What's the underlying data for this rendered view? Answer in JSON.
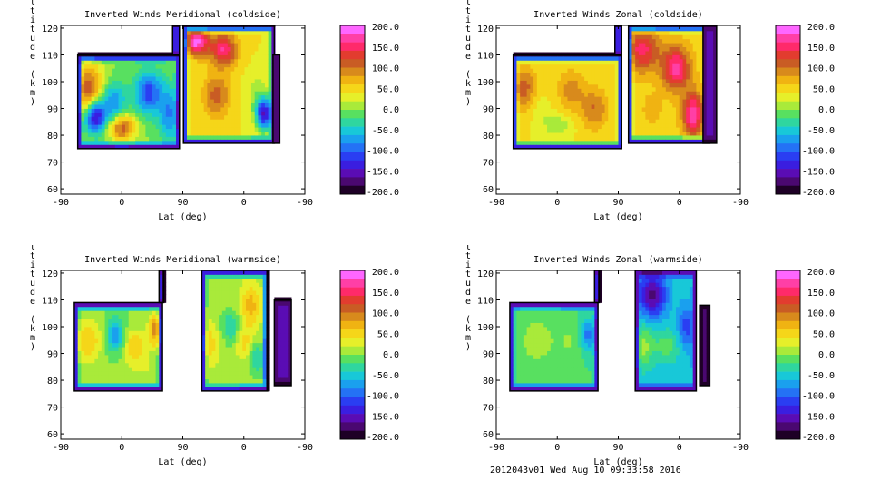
{
  "footer": "2012043v01 Wed Aug 10 09:33:58 2016",
  "colormap": [
    "#fe66ff",
    "#ff3fa6",
    "#ff2a6a",
    "#e23c2f",
    "#c95c24",
    "#d88a1c",
    "#f0b312",
    "#f5d619",
    "#e6ef2a",
    "#a9ea3a",
    "#58e060",
    "#2fd69f",
    "#18c8d8",
    "#1aa0ee",
    "#2472f5",
    "#2a3ef2",
    "#3a1ee0",
    "#5a0cb4",
    "#4a0870",
    "#1e0026"
  ],
  "chart_data": [
    {
      "type": "contour",
      "title": "Inverted Winds Meridional (coldside)",
      "xlabel": "Lat (deg)",
      "ylabel": "Altitude (km)",
      "x_ticks": [
        "-90",
        "0",
        "90",
        "0",
        "-90"
      ],
      "y_ticks": [
        "60",
        "70",
        "80",
        "90",
        "100",
        "110",
        "120"
      ],
      "ylim": [
        58,
        121
      ],
      "colorbar_ticks": [
        "200.0",
        "150.0",
        "100.0",
        "50.0",
        "0.0",
        "-50.0",
        "-100.0",
        "-150.0",
        "-200.0"
      ],
      "colorbar_range": [
        -200,
        200
      ],
      "regions": [
        {
          "x": [
            -65,
            85
          ],
          "alt": [
            75,
            110
          ],
          "base": 0,
          "blobs": [
            [
              -50,
              97,
              25,
              10,
              115
            ],
            [
              0,
              83,
              20,
              5,
              120
            ],
            [
              -40,
              87,
              15,
              6,
              -160
            ],
            [
              -15,
              92,
              20,
              8,
              -90
            ],
            [
              40,
              96,
              20,
              8,
              -110
            ],
            [
              70,
              88,
              15,
              10,
              -80
            ]
          ]
        },
        {
          "x": [
            75,
            85
          ],
          "alt": [
            110,
            121
          ],
          "base": 0,
          "blobs": []
        },
        {
          "x": [
            91,
            225
          ],
          "alt": [
            77,
            121
          ],
          "base": 40,
          "blobs": [
            [
              110,
              115,
              18,
              5,
              150
            ],
            [
              150,
              112,
              20,
              6,
              120
            ],
            [
              125,
              105,
              15,
              5,
              0
            ],
            [
              170,
              102,
              18,
              6,
              0
            ],
            [
              200,
              95,
              15,
              8,
              -30
            ],
            [
              140,
              95,
              20,
              8,
              70
            ],
            [
              210,
              88,
              12,
              6,
              -180
            ]
          ]
        },
        {
          "x": [
            223,
            233
          ],
          "alt": [
            77,
            110
          ],
          "base": -100,
          "blobs": []
        }
      ]
    },
    {
      "type": "contour",
      "title": "Inverted Winds Zonal (coldside)",
      "xlabel": "Lat (deg)",
      "ylabel": "Altitude (km)",
      "x_ticks": [
        "-90",
        "0",
        "90",
        "0",
        "-90"
      ],
      "y_ticks": [
        "60",
        "70",
        "80",
        "90",
        "100",
        "110",
        "120"
      ],
      "ylim": [
        58,
        121
      ],
      "colorbar_ticks": [
        "200.0",
        "150.0",
        "100.0",
        "50.0",
        "0.0",
        "-50.0",
        "-100.0",
        "-150.0",
        "-200.0"
      ],
      "colorbar_range": [
        -200,
        200
      ],
      "regions": [
        {
          "x": [
            -65,
            95
          ],
          "alt": [
            75,
            110
          ],
          "base": 40,
          "blobs": [
            [
              -50,
              98,
              20,
              8,
              70
            ],
            [
              20,
              97,
              20,
              8,
              50
            ],
            [
              55,
              90,
              20,
              8,
              60
            ],
            [
              0,
              84,
              20,
              4,
              -40
            ],
            [
              -25,
              90,
              12,
              5,
              -20
            ]
          ]
        },
        {
          "x": [
            85,
            95
          ],
          "alt": [
            110,
            121
          ],
          "base": 0,
          "blobs": []
        },
        {
          "x": [
            105,
            225
          ],
          "alt": [
            77,
            121
          ],
          "base": 50,
          "blobs": [
            [
              125,
              112,
              25,
              8,
              100
            ],
            [
              175,
              105,
              20,
              8,
              120
            ],
            [
              200,
              88,
              15,
              8,
              130
            ],
            [
              140,
              90,
              15,
              6,
              20
            ]
          ]
        },
        {
          "x": [
            215,
            235
          ],
          "alt": [
            77,
            121
          ],
          "base": -150,
          "blobs": []
        }
      ]
    },
    {
      "type": "contour",
      "title": "Inverted Winds Meridional (warmside)",
      "xlabel": "Lat (deg)",
      "ylabel": "Altitude (km)",
      "x_ticks": [
        "-90",
        "0",
        "90",
        "0",
        "-90"
      ],
      "y_ticks": [
        "60",
        "70",
        "80",
        "90",
        "100",
        "110",
        "120"
      ],
      "ylim": [
        58,
        121
      ],
      "colorbar_ticks": [
        "200.0",
        "150.0",
        "100.0",
        "50.0",
        "0.0",
        "-50.0",
        "-100.0",
        "-150.0",
        "-200.0"
      ],
      "colorbar_range": [
        -200,
        200
      ],
      "regions": [
        {
          "x": [
            -70,
            60
          ],
          "alt": [
            76,
            109
          ],
          "base": 0,
          "blobs": [
            [
              -50,
              95,
              20,
              8,
              60
            ],
            [
              20,
              93,
              15,
              6,
              60
            ],
            [
              -10,
              97,
              12,
              6,
              -80
            ],
            [
              50,
              99,
              10,
              6,
              100
            ],
            [
              30,
              85,
              30,
              5,
              20
            ]
          ]
        },
        {
          "x": [
            55,
            62
          ],
          "alt": [
            109,
            121
          ],
          "base": 0,
          "blobs": []
        },
        {
          "x": [
            118,
            215
          ],
          "alt": [
            76,
            121
          ],
          "base": 10,
          "blobs": [
            [
              190,
              108,
              15,
              8,
              60
            ],
            [
              160,
              100,
              15,
              6,
              -50
            ],
            [
              180,
              94,
              12,
              6,
              40
            ],
            [
              200,
              88,
              12,
              6,
              -50
            ],
            [
              130,
              94,
              15,
              8,
              40
            ]
          ]
        },
        {
          "x": [
            225,
            250
          ],
          "alt": [
            78,
            110
          ],
          "base": -150,
          "blobs": []
        }
      ]
    },
    {
      "type": "contour",
      "title": "Inverted Winds Zonal (warmside)",
      "xlabel": "Lat (deg)",
      "ylabel": "Altitude (km)",
      "x_ticks": [
        "-90",
        "0",
        "90",
        "0",
        "-90"
      ],
      "y_ticks": [
        "60",
        "70",
        "80",
        "90",
        "100",
        "110",
        "120"
      ],
      "ylim": [
        58,
        121
      ],
      "colorbar_ticks": [
        "200.0",
        "150.0",
        "100.0",
        "50.0",
        "0.0",
        "-50.0",
        "-100.0",
        "-150.0",
        "-200.0"
      ],
      "colorbar_range": [
        -200,
        200
      ],
      "regions": [
        {
          "x": [
            -70,
            60
          ],
          "alt": [
            76,
            109
          ],
          "base": -20,
          "blobs": [
            [
              -30,
              95,
              30,
              10,
              30
            ],
            [
              20,
              95,
              20,
              8,
              20
            ],
            [
              45,
              97,
              12,
              6,
              -70
            ]
          ]
        },
        {
          "x": [
            55,
            62
          ],
          "alt": [
            109,
            121
          ],
          "base": 0,
          "blobs": []
        },
        {
          "x": [
            115,
            205
          ],
          "alt": [
            76,
            121
          ],
          "base": -50,
          "blobs": [
            [
              125,
              93,
              15,
              8,
              60
            ],
            [
              160,
              93,
              20,
              6,
              40
            ],
            [
              140,
              112,
              20,
              8,
              -120
            ],
            [
              190,
              100,
              12,
              8,
              -60
            ]
          ]
        },
        {
          "x": [
            210,
            225
          ],
          "alt": [
            78,
            108
          ],
          "base": -170,
          "blobs": []
        }
      ]
    }
  ]
}
